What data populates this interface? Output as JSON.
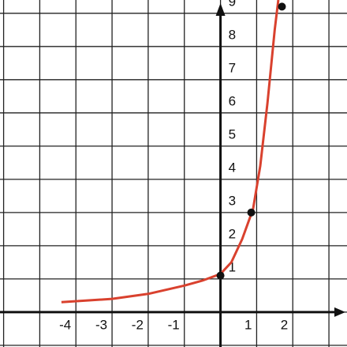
{
  "chart_data": {
    "type": "line",
    "xlim": [
      -6.1,
      3.5
    ],
    "ylim": [
      -1.05,
      9.4
    ],
    "xticks": [
      -4,
      -3,
      -2,
      -1,
      1,
      2
    ],
    "yticks": [
      1,
      2,
      3,
      4,
      5,
      6,
      7,
      8,
      9
    ],
    "xgrid": [
      -6,
      -5,
      -4,
      -3,
      -2,
      -1,
      0,
      1,
      2,
      3
    ],
    "ygrid": [
      -1,
      0,
      1,
      2,
      3,
      4,
      5,
      6,
      7,
      8,
      9
    ],
    "grid": true,
    "series": [
      {
        "color": "#d9412e",
        "x": [
          -4.4,
          -3,
          -2,
          -1,
          -0.5,
          0,
          0.3,
          0.6,
          0.9,
          1.1,
          1.3,
          1.5,
          1.6
        ],
        "values": [
          0.3,
          0.4,
          0.55,
          0.8,
          0.95,
          1.15,
          1.5,
          2.2,
          3.1,
          4.4,
          6.3,
          8.5,
          9.4
        ]
      }
    ],
    "points": {
      "color": "#111",
      "x": [
        0,
        0.85,
        1.7
      ],
      "values": [
        1.1,
        3,
        9.2
      ]
    }
  }
}
